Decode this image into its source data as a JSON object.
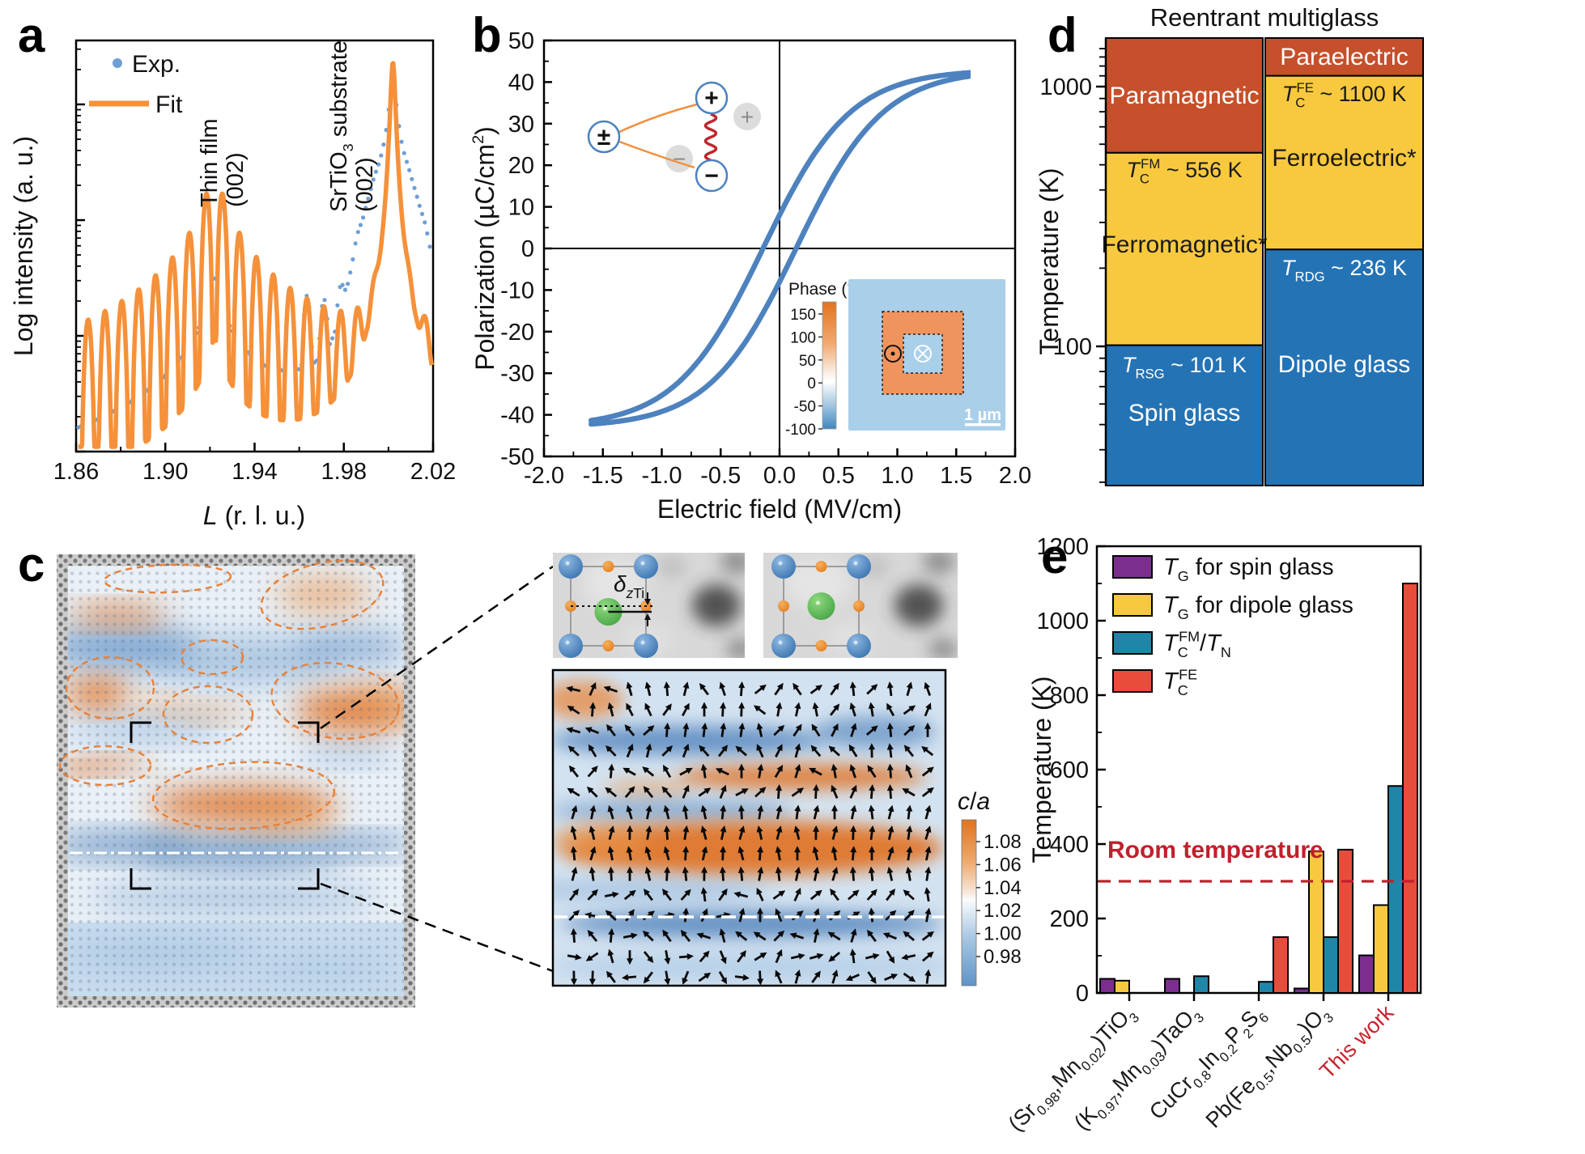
{
  "panel_labels": {
    "a": "a",
    "b": "b",
    "c": "c",
    "d": "d",
    "e": "e"
  },
  "colors": {
    "exp_blue": "#6E9FD4",
    "fit_orange": "#F5913A",
    "loop_blue": "#4D82BE",
    "d_red": "#C5502B",
    "d_yellow": "#F8C93E",
    "d_blue": "#2473B5",
    "e_purple": "#7B2E8E",
    "e_yellow": "#F8C93E",
    "e_teal": "#1F86A8",
    "e_red": "#EA4C3B",
    "room_red": "#C0202C",
    "this_work_red": "#C8232E"
  },
  "chart_data": [
    {
      "panel": "a",
      "type": "line",
      "ylabel": "Log intensity (a. u.)",
      "xlabel_parts": [
        [
          "L",
          "i"
        ],
        [
          " (r. l. u.)",
          ""
        ]
      ],
      "xticks": [
        "1.86",
        "1.90",
        "1.94",
        "1.98",
        "2.02"
      ],
      "xlim": [
        1.86,
        2.02
      ],
      "legend": [
        {
          "label": "Exp.",
          "color": "#6E9FD4",
          "marker": "dot"
        },
        {
          "label": "Fit",
          "color": "#F5913A",
          "marker": "line"
        }
      ],
      "annotations": [
        {
          "lines": [
            [
              [
                "Thin film",
                ""
              ]
            ],
            [
              [
                "(002)",
                ""
              ]
            ]
          ],
          "x_rlu": 1.922
        },
        {
          "lines": [
            [
              [
                "SrTiO",
                ""
              ],
              [
                "3",
                "sub"
              ],
              [
                " substrate",
                ""
              ]
            ],
            [
              [
                "(002)",
                ""
              ]
            ]
          ],
          "x_rlu": 2.002
        }
      ],
      "model": {
        "film_peak_rlu": 1.922,
        "substrate_peak_rlu": 2.002,
        "fringe_period_rlu": 0.00755
      }
    },
    {
      "panel": "b",
      "type": "line",
      "ylabel_parts": [
        [
          "Polarization (µC/cm",
          ""
        ],
        [
          "2",
          "sup"
        ],
        [
          ")",
          ""
        ]
      ],
      "xlabel": "Electric field (MV/cm)",
      "xticks": [
        "-2.0",
        "-1.5",
        "-1.0",
        "-0.5",
        "0.0",
        "0.5",
        "1.0",
        "1.5",
        "2.0"
      ],
      "yticks": [
        "50",
        "40",
        "30",
        "20",
        "10",
        "0",
        "-10",
        "-20",
        "-30",
        "-40",
        "-50"
      ],
      "xlim": [
        -2,
        2
      ],
      "ylim": [
        -50,
        50
      ],
      "loop": {
        "E_max": 1.6,
        "P_sat": 43,
        "E_c": 0.14,
        "slope": 1.35
      },
      "dipole_schematic": {
        "pm": "±",
        "plus": "+",
        "minus": "−"
      },
      "pfm_inset": {
        "colorbar_title": "Phase (°)",
        "colorbar_ticks": [
          "150",
          "100",
          "50",
          "0",
          "-50",
          "-100"
        ],
        "scale_bar": "1 µm"
      }
    },
    {
      "panel": "c",
      "type": "heatmap",
      "colorbar_title_parts": [
        [
          "c",
          "i"
        ],
        [
          "/",
          ""
        ],
        [
          "a",
          "i"
        ]
      ],
      "colorbar_ticks": [
        "1.08",
        "1.06",
        "1.04",
        "1.02",
        "1.00",
        "0.98"
      ],
      "displacement_label_parts": [
        [
          "δ",
          "i"
        ],
        [
          "z",
          "isub"
        ],
        [
          "Ti",
          "sub"
        ]
      ]
    },
    {
      "panel": "d",
      "type": "phase-diagram",
      "title": "Reentrant multiglass",
      "ylabel": "Temperature (K)",
      "yticks": [
        "1000",
        "100"
      ],
      "ytick_values": [
        1000,
        100
      ],
      "columns": [
        {
          "regions": [
            {
              "label": "Paramagnetic",
              "t_range": [
                556,
                1540
              ],
              "color": "#C5502B",
              "label_color": "#FFFFFF"
            },
            {
              "label": "Ferromagnetic*",
              "t_range": [
                101,
                556
              ],
              "color": "#F8C93E",
              "label_color": "#1A1A1A",
              "boundary_parts": [
                [
                  "T",
                  "i"
                ],
                [
                  "C",
                  "sub"
                ],
                [
                  "FM",
                  "supb"
                ],
                [
                  " ~ 556 K",
                  ""
                ]
              ],
              "boundary_color": "#1A1A1A"
            },
            {
              "label": "Spin glass",
              "t_range": [
                29,
                101
              ],
              "color": "#2473B5",
              "label_color": "#FFFFFF",
              "boundary_parts": [
                [
                  "T",
                  "i"
                ],
                [
                  "RSG",
                  "sub"
                ],
                [
                  " ~ 101 K",
                  ""
                ]
              ],
              "boundary_color": "#FFFFFF"
            }
          ]
        },
        {
          "regions": [
            {
              "label": "Paraelectric",
              "t_range": [
                1100,
                1540
              ],
              "color": "#C5502B",
              "label_color": "#FFFFFF"
            },
            {
              "label": "Ferroelectric*",
              "t_range": [
                236,
                1100
              ],
              "color": "#F8C93E",
              "label_color": "#1A1A1A",
              "boundary_parts": [
                [
                  "T",
                  "i"
                ],
                [
                  "C",
                  "sub"
                ],
                [
                  "FE",
                  "supb"
                ],
                [
                  " ~ 1100 K",
                  ""
                ]
              ],
              "boundary_color": "#1A1A1A"
            },
            {
              "label": "Dipole glass",
              "t_range": [
                29,
                236
              ],
              "color": "#2473B5",
              "label_color": "#FFFFFF",
              "boundary_parts": [
                [
                  "T",
                  "i"
                ],
                [
                  "RDG",
                  "sub"
                ],
                [
                  " ~ 236 K",
                  ""
                ]
              ],
              "boundary_color": "#FFFFFF"
            }
          ]
        }
      ]
    },
    {
      "panel": "e",
      "type": "bar",
      "ylabel": "Temperature (K)",
      "ylim": [
        0,
        1200
      ],
      "yticks": [
        "0",
        "200",
        "400",
        "600",
        "800",
        "1000",
        "1200"
      ],
      "legend": [
        {
          "parts": [
            [
              "T",
              "i"
            ],
            [
              "G",
              "sub"
            ],
            [
              " for spin glass",
              ""
            ]
          ],
          "color": "#7B2E8E"
        },
        {
          "parts": [
            [
              "T",
              "i"
            ],
            [
              "G",
              "sub"
            ],
            [
              " for dipole glass",
              ""
            ]
          ],
          "color": "#F8C93E"
        },
        {
          "parts": [
            [
              "T",
              "i"
            ],
            [
              "C",
              "sub"
            ],
            [
              "FM",
              "supb"
            ],
            [
              "/",
              ""
            ],
            [
              "T",
              "i"
            ],
            [
              "N",
              "sub"
            ]
          ],
          "color": "#1F86A8"
        },
        {
          "parts": [
            [
              "T",
              "i"
            ],
            [
              "C",
              "sub"
            ],
            [
              "FE",
              "supb"
            ]
          ],
          "color": "#EA4C3B"
        }
      ],
      "room_temperature": {
        "label": "Room temperature",
        "value": 300,
        "color": "#C0202C"
      },
      "categories": [
        {
          "parts": [
            [
              "(Sr",
              ""
            ],
            [
              "0.98",
              "sub"
            ],
            [
              ",Mn",
              ""
            ],
            [
              "0.02",
              "sub"
            ],
            [
              ")TiO",
              ""
            ],
            [
              "3",
              "sub"
            ]
          ],
          "color": "#1A1A1A"
        },
        {
          "parts": [
            [
              "(K",
              ""
            ],
            [
              "0.97",
              "sub"
            ],
            [
              ",Mn",
              ""
            ],
            [
              "0.03",
              "sub"
            ],
            [
              ")TaO",
              ""
            ],
            [
              "3",
              "sub"
            ]
          ],
          "color": "#1A1A1A"
        },
        {
          "parts": [
            [
              "CuCr",
              ""
            ],
            [
              "0.8",
              "sub"
            ],
            [
              "In",
              ""
            ],
            [
              "0.2",
              "sub"
            ],
            [
              "P",
              ""
            ],
            [
              "2",
              "sub"
            ],
            [
              "S",
              ""
            ],
            [
              "6",
              "sub"
            ]
          ],
          "color": "#1A1A1A"
        },
        {
          "parts": [
            [
              "Pb(Fe",
              ""
            ],
            [
              "0.5",
              "sub"
            ],
            [
              ",Nb",
              ""
            ],
            [
              "0.5",
              "sub"
            ],
            [
              ")O",
              ""
            ],
            [
              "3",
              "sub"
            ]
          ],
          "color": "#1A1A1A"
        },
        {
          "parts": [
            [
              "This work",
              ""
            ]
          ],
          "color": "#C8232E"
        }
      ],
      "series": [
        {
          "name": "TG for spin glass",
          "color": "#7B2E8E",
          "values": [
            38,
            38,
            null,
            12,
            101
          ]
        },
        {
          "name": "TG for dipole glass",
          "color": "#F8C93E",
          "values": [
            33,
            null,
            null,
            380,
            236
          ]
        },
        {
          "name": "TC_FM / TN",
          "color": "#1F86A8",
          "values": [
            null,
            45,
            30,
            150,
            556
          ]
        },
        {
          "name": "TC_FE",
          "color": "#EA4C3B",
          "values": [
            null,
            null,
            150,
            385,
            1100
          ]
        }
      ]
    }
  ]
}
